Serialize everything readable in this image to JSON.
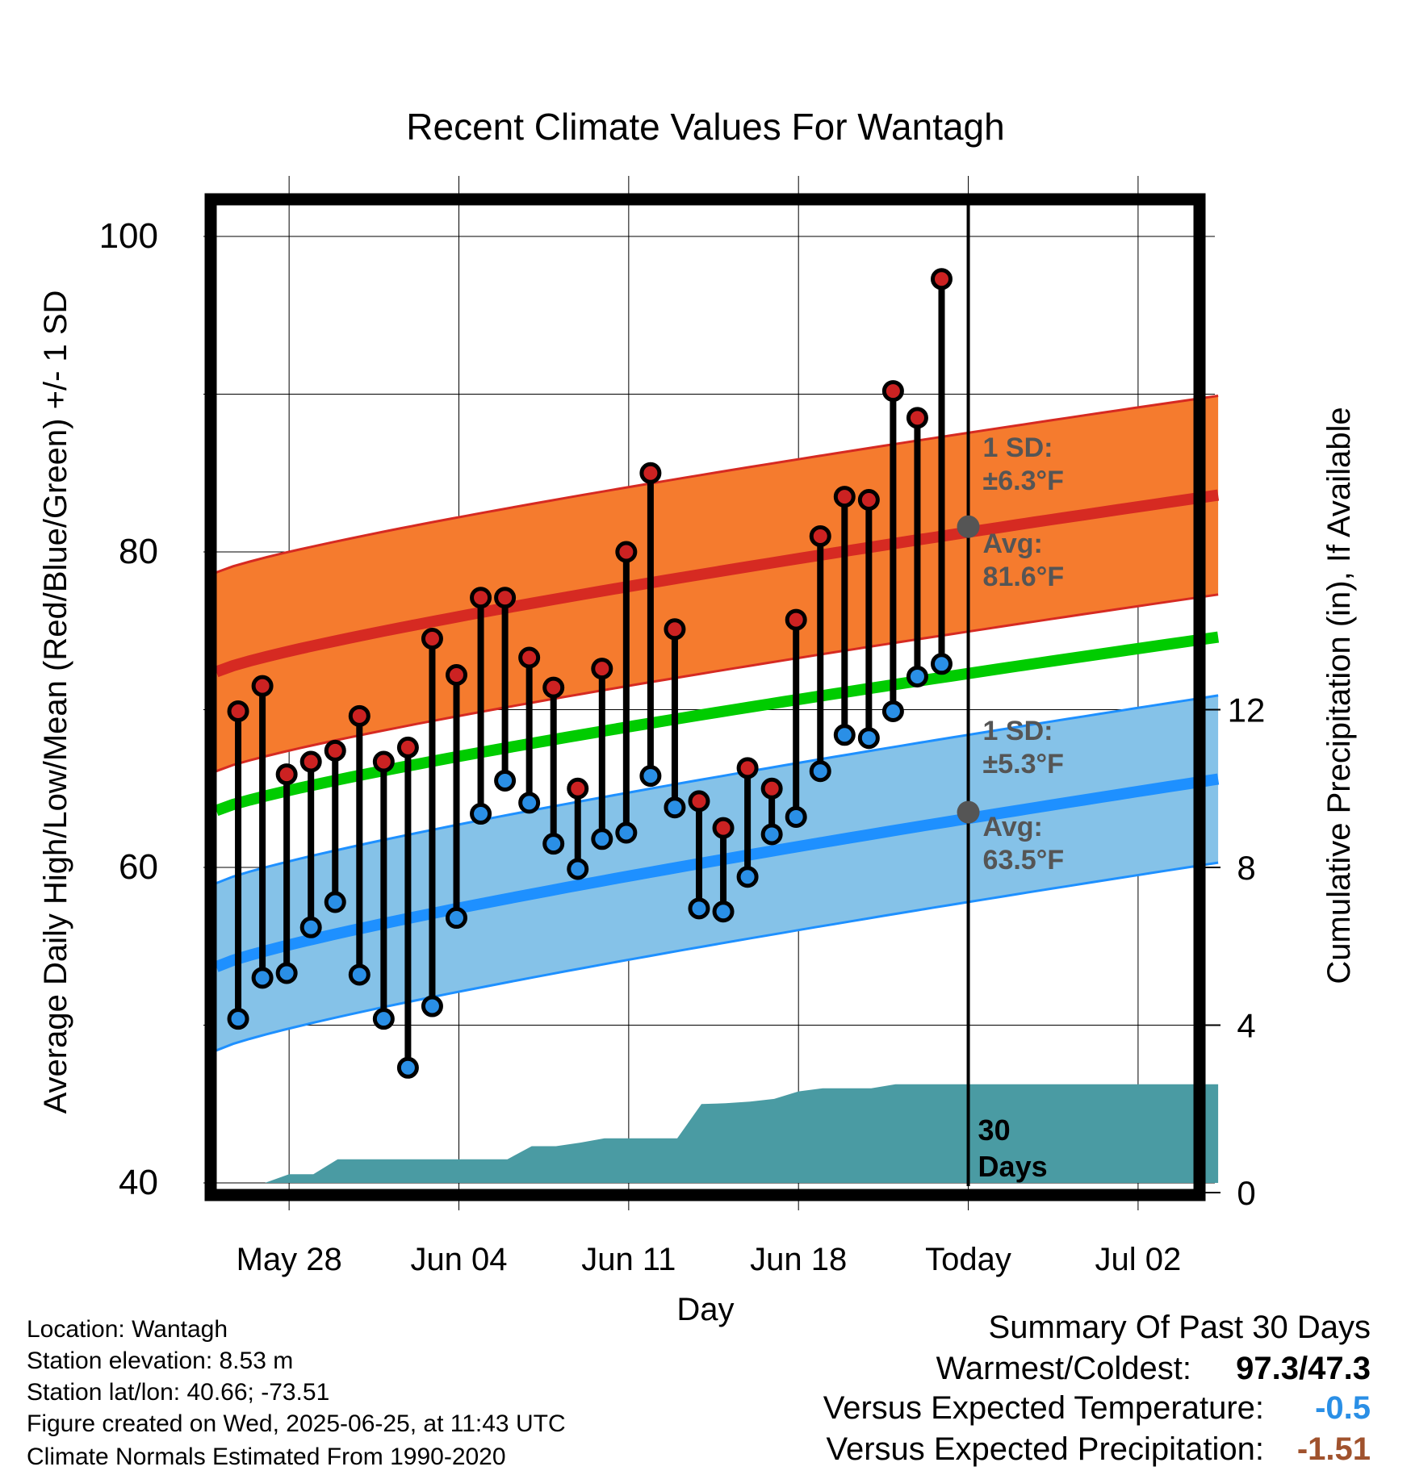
{
  "chart_data": {
    "type": "line",
    "title": "Recent Climate Values For Wantagh",
    "xlabel": "Day",
    "ylabel": "Average Daily High/Low/Mean (Red/Blue/Green) +/- 1 SD",
    "y2label": "Cumulative Precipitation (in), If Available",
    "ylim": [
      40,
      100
    ],
    "y2lim": [
      0,
      24
    ],
    "yticks": [
      "40",
      "60",
      "80",
      "100"
    ],
    "y2ticks": [
      "0",
      "4",
      "8",
      "12"
    ],
    "xticks": [
      "May 28",
      "Jun 04",
      "Jun 11",
      "Jun 18",
      "Today",
      "Jul 02"
    ],
    "x_start": "2025-05-25",
    "today": "2025-06-25",
    "normal_high_endpoints": [
      72.4,
      83.6
    ],
    "normal_high_sd": 6.3,
    "normal_low_endpoints": [
      53.7,
      65.6
    ],
    "normal_low_sd": 5.3,
    "normal_mean_endpoints": [
      63.6,
      74.6
    ],
    "observed": {
      "dates": [
        "2025-05-26",
        "2025-05-27",
        "2025-05-28",
        "2025-05-29",
        "2025-05-30",
        "2025-05-31",
        "2025-06-01",
        "2025-06-02",
        "2025-06-03",
        "2025-06-04",
        "2025-06-05",
        "2025-06-06",
        "2025-06-07",
        "2025-06-08",
        "2025-06-09",
        "2025-06-10",
        "2025-06-11",
        "2025-06-12",
        "2025-06-13",
        "2025-06-14",
        "2025-06-15",
        "2025-06-16",
        "2025-06-17",
        "2025-06-18",
        "2025-06-19",
        "2025-06-20",
        "2025-06-21",
        "2025-06-22",
        "2025-06-23",
        "2025-06-24"
      ],
      "high": [
        69.9,
        71.5,
        65.9,
        66.7,
        67.4,
        69.6,
        66.7,
        67.6,
        74.5,
        72.2,
        77.1,
        77.1,
        73.3,
        71.4,
        65.0,
        72.6,
        80.0,
        85.0,
        75.1,
        64.2,
        62.5,
        66.3,
        65.0,
        75.7,
        81.0,
        83.5,
        83.3,
        90.2,
        88.5,
        97.3
      ],
      "low": [
        50.4,
        53.0,
        53.3,
        56.2,
        57.8,
        53.2,
        50.4,
        47.3,
        51.2,
        56.8,
        63.4,
        65.5,
        64.1,
        61.5,
        59.9,
        61.8,
        62.2,
        65.8,
        63.8,
        57.4,
        57.2,
        59.4,
        62.1,
        63.2,
        66.1,
        68.4,
        68.2,
        69.9,
        72.1,
        72.9
      ]
    },
    "precip_cumulative": {
      "dates": [
        "2025-05-25",
        "2025-05-26",
        "2025-05-27",
        "2025-05-28",
        "2025-05-29",
        "2025-05-30",
        "2025-05-31",
        "2025-06-01",
        "2025-06-02",
        "2025-06-03",
        "2025-06-04",
        "2025-06-05",
        "2025-06-06",
        "2025-06-07",
        "2025-06-08",
        "2025-06-09",
        "2025-06-10",
        "2025-06-11",
        "2025-06-12",
        "2025-06-13",
        "2025-06-14",
        "2025-06-15",
        "2025-06-16",
        "2025-06-17",
        "2025-06-18",
        "2025-06-19",
        "2025-06-20",
        "2025-06-21",
        "2025-06-22",
        "2025-06-23",
        "2025-06-24",
        "2025-06-25",
        "2025-07-05"
      ],
      "values": [
        0,
        0,
        0,
        0.22,
        0.22,
        0.6,
        0.6,
        0.6,
        0.6,
        0.6,
        0.6,
        0.6,
        0.6,
        0.93,
        0.93,
        1.02,
        1.13,
        1.13,
        1.13,
        1.13,
        2.0,
        2.02,
        2.06,
        2.13,
        2.32,
        2.4,
        2.4,
        2.4,
        2.5,
        2.5,
        2.5,
        2.5,
        2.5
      ]
    },
    "annotations": {
      "high_sd_label": "1 SD:",
      "high_sd_value": "±6.3°F",
      "high_avg_label": "Avg:",
      "high_avg_value": "81.6°F",
      "low_sd_label": "1 SD:",
      "low_sd_value": "±5.3°F",
      "low_avg_label": "Avg:",
      "low_avg_value": "63.5°F",
      "days_line1": "30",
      "days_line2": "Days"
    },
    "colors": {
      "high_band": "#f57b2e",
      "high_line": "#d62a22",
      "low_band": "#85c2e8",
      "low_line": "#1e90ff",
      "mean_line": "#00cc00",
      "precip": "#4a9ba3",
      "high_dot": "#cc2222",
      "low_dot": "#2a8fe6",
      "annotation": "#555555"
    },
    "legend": "none",
    "grid": true
  },
  "footer": {
    "location": "Location: Wantagh",
    "elevation": "Station elevation: 8.53 m",
    "latlon": "Station lat/lon: 40.66; -73.51",
    "created": "Figure created on Wed, 2025-06-25, at 11:43 UTC",
    "normals": "Climate Normals Estimated From 1990-2020"
  },
  "summary": {
    "title": "Summary Of Past 30 Days",
    "warmest_label": "Warmest/Coldest:",
    "warmest_value": "97.3/47.3",
    "temp_label": "Versus Expected Temperature:",
    "temp_value": "-0.5",
    "precip_label": "Versus Expected Precipitation:",
    "precip_value": "-1.51",
    "temp_color": "#2a8fe6",
    "precip_color": "#a0522d"
  }
}
